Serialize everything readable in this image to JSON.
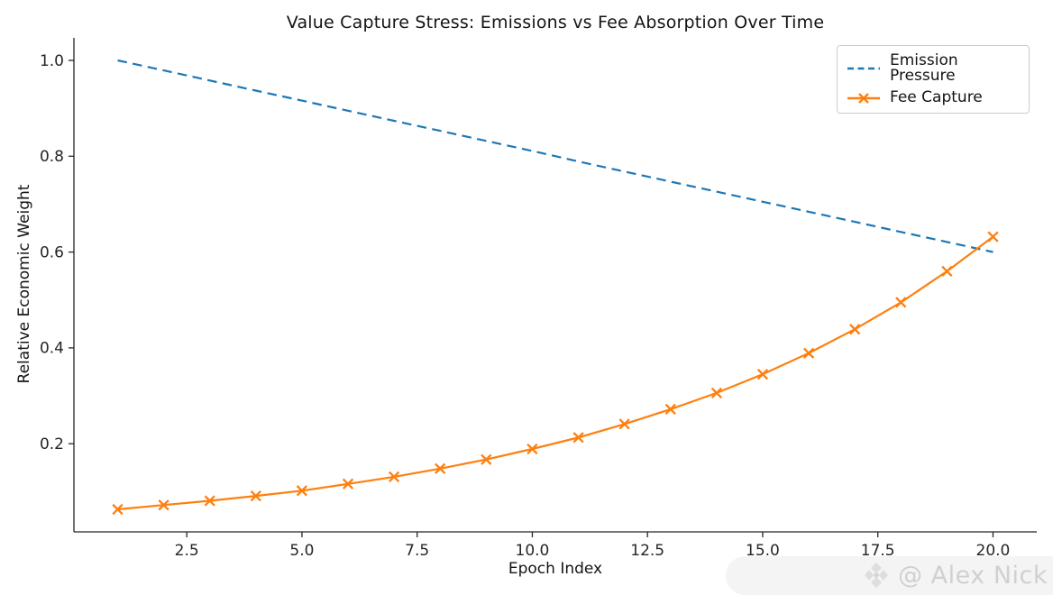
{
  "figure": {
    "title": "Value Capture Stress: Emissions vs Fee Absorption Over Time",
    "watermark": {
      "text": "@ Alex Nick",
      "logo": "diamond-logo-icon"
    }
  },
  "chart_data": {
    "type": "line",
    "title": "Value Capture Stress: Emissions vs Fee Absorption Over Time",
    "xlabel": "Epoch Index",
    "ylabel": "Relative Economic Weight",
    "x": [
      1,
      2,
      3,
      4,
      5,
      6,
      7,
      8,
      9,
      10,
      11,
      12,
      13,
      14,
      15,
      16,
      17,
      18,
      19,
      20
    ],
    "series": [
      {
        "name": "Emission Pressure",
        "color": "#1f77b4",
        "style": "dashed",
        "marker": "none",
        "values": [
          1.0,
          0.979,
          0.958,
          0.937,
          0.916,
          0.895,
          0.874,
          0.853,
          0.832,
          0.811,
          0.789,
          0.768,
          0.747,
          0.726,
          0.705,
          0.684,
          0.663,
          0.642,
          0.621,
          0.6
        ]
      },
      {
        "name": "Fee Capture",
        "color": "#ff7f0e",
        "style": "solid",
        "marker": "x",
        "values": [
          0.063,
          0.072,
          0.081,
          0.091,
          0.102,
          0.116,
          0.131,
          0.148,
          0.167,
          0.189,
          0.213,
          0.241,
          0.272,
          0.306,
          0.345,
          0.389,
          0.439,
          0.495,
          0.56,
          0.632
        ]
      }
    ],
    "xticks": [
      2.5,
      5.0,
      7.5,
      10.0,
      12.5,
      15.0,
      17.5,
      20.0
    ],
    "xtick_labels": [
      "2.5",
      "5.0",
      "7.5",
      "10.0",
      "12.5",
      "15.0",
      "17.5",
      "20.0"
    ],
    "yticks": [
      0.2,
      0.4,
      0.6,
      0.8,
      1.0
    ],
    "ytick_labels": [
      "0.2",
      "0.4",
      "0.6",
      "0.8",
      "1.0"
    ],
    "xlim": [
      0.05,
      20.95
    ],
    "ylim": [
      0.016,
      1.047
    ],
    "grid": false,
    "legend_position": "upper right"
  }
}
